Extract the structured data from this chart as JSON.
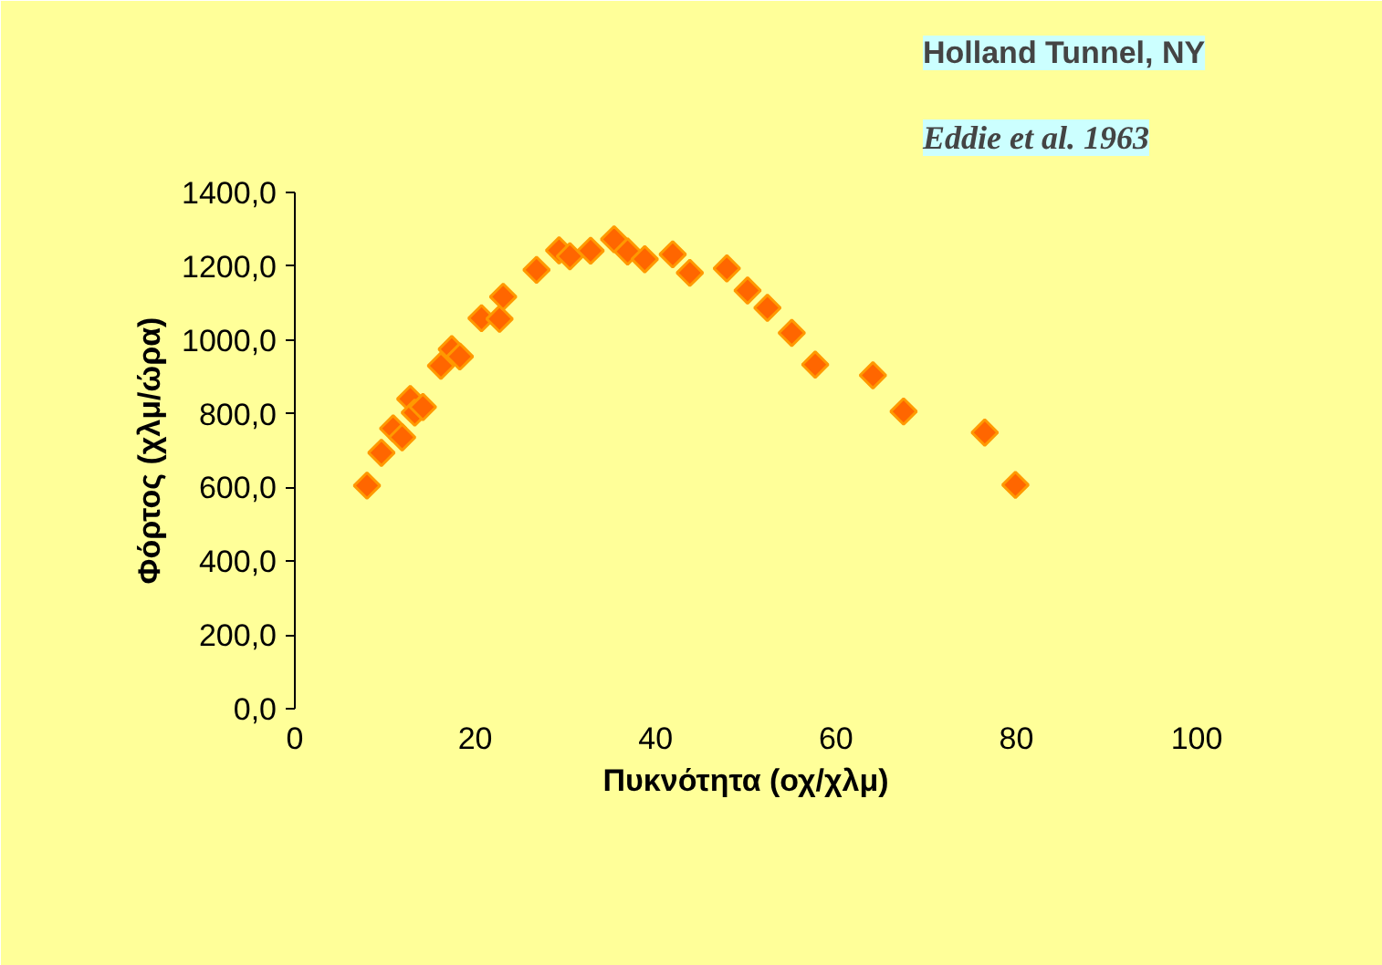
{
  "chart_data": {
    "type": "scatter",
    "title": "Holland Tunnel, NY",
    "subtitle": "Eddie et al. 1963",
    "xlabel": "Πυκνότητα (οχ/χλμ)",
    "ylabel": "Φόρτος (χλμ/ώρα)",
    "marker": "diamond",
    "color": "#ff6600",
    "x": [
      8.0,
      9.6,
      10.9,
      11.9,
      12.8,
      13.3,
      14.2,
      16.2,
      17.4,
      18.3,
      20.7,
      22.7,
      23.1,
      26.8,
      29.3,
      30.5,
      32.8,
      35.4,
      36.9,
      38.8,
      41.9,
      43.8,
      47.9,
      50.2,
      52.4,
      55.1,
      57.7,
      64.1,
      67.5,
      76.5,
      79.9
    ],
    "values": [
      605,
      694,
      760,
      736,
      840,
      803,
      818,
      930,
      975,
      955,
      1059,
      1057,
      1117,
      1190,
      1243,
      1227,
      1242,
      1273,
      1240,
      1219,
      1232,
      1182,
      1194,
      1134,
      1087,
      1019,
      933,
      904,
      806,
      749,
      607
    ],
    "xlim": [
      0,
      100
    ],
    "xticks": [
      0,
      20,
      40,
      60,
      80,
      100
    ],
    "ylim": [
      0,
      1400
    ],
    "yticks": [
      {
        "value": 0,
        "label": "0,0"
      },
      {
        "value": 200,
        "label": "200,0"
      },
      {
        "value": 400,
        "label": "400,0"
      },
      {
        "value": 600,
        "label": "600,0"
      },
      {
        "value": 800,
        "label": "800,0"
      },
      {
        "value": 1000,
        "label": "1000,0"
      },
      {
        "value": 1200,
        "label": "1200,0"
      },
      {
        "value": 1400,
        "label": "1400,0"
      }
    ]
  }
}
